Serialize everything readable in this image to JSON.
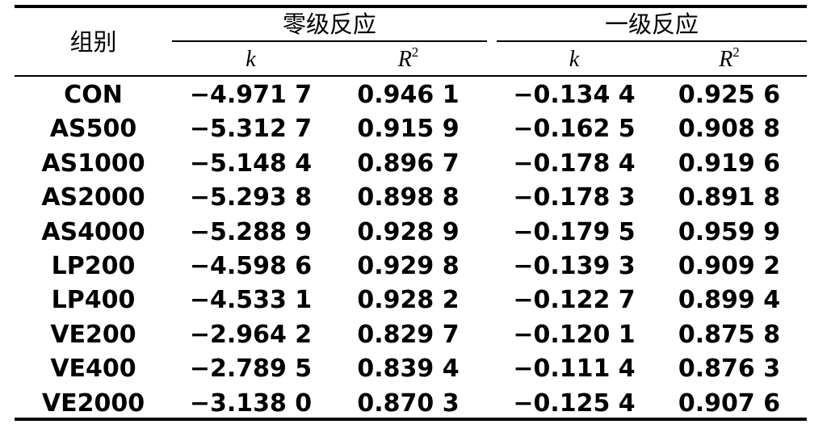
{
  "headers": {
    "group": "组别",
    "zero_order": "零级反应",
    "first_order": "一级反应",
    "k": "k",
    "r2_base": "R",
    "r2_exp": "2"
  },
  "rows": [
    {
      "group": "CON",
      "k0": "−4.971 7",
      "r0": "0.946 1",
      "k1": "−0.134 4",
      "r1": "0.925 6"
    },
    {
      "group": "AS500",
      "k0": "−5.312 7",
      "r0": "0.915 9",
      "k1": "−0.162 5",
      "r1": "0.908 8"
    },
    {
      "group": "AS1000",
      "k0": "−5.148 4",
      "r0": "0.896 7",
      "k1": "−0.178 4",
      "r1": "0.919 6"
    },
    {
      "group": "AS2000",
      "k0": "−5.293 8",
      "r0": "0.898 8",
      "k1": "−0.178 3",
      "r1": "0.891 8"
    },
    {
      "group": "AS4000",
      "k0": "−5.288 9",
      "r0": "0.928 9",
      "k1": "−0.179 5",
      "r1": "0.959 9"
    },
    {
      "group": "LP200",
      "k0": "−4.598 6",
      "r0": "0.929 8",
      "k1": "−0.139 3",
      "r1": "0.909 2"
    },
    {
      "group": "LP400",
      "k0": "−4.533 1",
      "r0": "0.928 2",
      "k1": "−0.122 7",
      "r1": "0.899 4"
    },
    {
      "group": "VE200",
      "k0": "−2.964 2",
      "r0": "0.829 7",
      "k1": "−0.120 1",
      "r1": "0.875 8"
    },
    {
      "group": "VE400",
      "k0": "−2.789 5",
      "r0": "0.839 4",
      "k1": "−0.111 4",
      "r1": "0.876 3"
    },
    {
      "group": "VE2000",
      "k0": "−3.138 0",
      "r0": "0.870 3",
      "k1": "−0.125 4",
      "r1": "0.907 6"
    }
  ]
}
